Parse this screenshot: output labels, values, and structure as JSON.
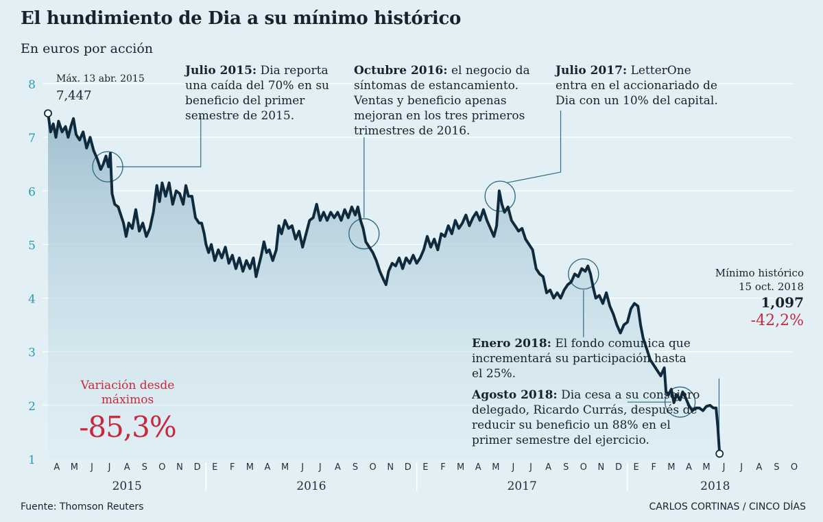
{
  "title": "El hundimiento de Dia a su mínimo histórico",
  "subtitle": "En euros por acción",
  "colors": {
    "line": "#0e2a3c",
    "accent": "#c8283c",
    "tick": "#2a9bb5",
    "background": "#e2eff5"
  },
  "annotations": {
    "max": {
      "label": "Máx. 13 abr. 2015",
      "value": "7,447"
    },
    "min": {
      "label1": "Mínimo histórico",
      "label2": "15 oct. 2018",
      "value": "1,097",
      "change": "-42,2%"
    },
    "jul2015": {
      "bold": "Julio 2015:",
      "text": " Dia reporta una caída del 70% en su beneficio del primer semestre de 2015."
    },
    "oct2016": {
      "bold": "Octubre 2016:",
      "text": " el negocio da síntomas de estancamiento. Ventas y beneficio apenas mejoran en los tres primeros trimestres de 2016."
    },
    "jul2017": {
      "bold": "Julio 2017:",
      "text": " LetterOne entra en el accionariado de Dia con un 10% del capital."
    },
    "ene2018": {
      "bold": "Enero 2018:",
      "text": " El fondo comunica que incrementará su participación hasta el 25%."
    },
    "ago2018": {
      "bold": "Agosto 2018:",
      "text": " Dia cesa a su consejero delegado, Ricardo Currás, después de reducir su beneficio un 88% en el primer semestre del ejercicio."
    }
  },
  "variation": {
    "label": "Variación desde máximos",
    "value": "-85,3%"
  },
  "source": "Fuente: Thomson Reuters",
  "credit": "CARLOS CORTINAS / CINCO DÍAS",
  "chart_data": {
    "type": "area",
    "title": "El hundimiento de Dia a su mínimo histórico",
    "ylabel": "En euros por acción",
    "ylim": [
      1,
      8
    ],
    "yticks": [
      1,
      2,
      3,
      4,
      5,
      6,
      7,
      8
    ],
    "month_labels": [
      "A",
      "M",
      "J",
      "J",
      "A",
      "S",
      "O",
      "N",
      "D",
      "E",
      "F",
      "M",
      "A",
      "M",
      "J",
      "J",
      "A",
      "S",
      "O",
      "N",
      "D",
      "E",
      "F",
      "M",
      "A",
      "M",
      "J",
      "J",
      "A",
      "S",
      "O",
      "N",
      "D",
      "E",
      "F",
      "M",
      "A",
      "M",
      "J",
      "J",
      "A",
      "S",
      "O"
    ],
    "years": [
      {
        "label": "2015",
        "from": 0,
        "to": 9
      },
      {
        "label": "2016",
        "from": 9,
        "to": 21
      },
      {
        "label": "2017",
        "from": 21,
        "to": 33
      },
      {
        "label": "2018",
        "from": 33,
        "to": 43
      }
    ],
    "series": [
      {
        "name": "Dia (euros por acción)",
        "points": [
          [
            0.0,
            7.447
          ],
          [
            0.15,
            7.1
          ],
          [
            0.3,
            7.25
          ],
          [
            0.45,
            7.0
          ],
          [
            0.6,
            7.3
          ],
          [
            0.8,
            7.1
          ],
          [
            1.0,
            7.2
          ],
          [
            1.15,
            7.0
          ],
          [
            1.3,
            7.2
          ],
          [
            1.45,
            7.35
          ],
          [
            1.6,
            7.05
          ],
          [
            1.8,
            6.95
          ],
          [
            2.0,
            7.1
          ],
          [
            2.2,
            6.8
          ],
          [
            2.4,
            7.0
          ],
          [
            2.6,
            6.75
          ],
          [
            2.8,
            6.6
          ],
          [
            3.0,
            6.4
          ],
          [
            3.15,
            6.5
          ],
          [
            3.3,
            6.65
          ],
          [
            3.45,
            6.45
          ],
          [
            3.55,
            6.7
          ],
          [
            3.65,
            5.95
          ],
          [
            3.8,
            5.75
          ],
          [
            4.0,
            5.7
          ],
          [
            4.15,
            5.55
          ],
          [
            4.3,
            5.4
          ],
          [
            4.45,
            5.15
          ],
          [
            4.6,
            5.4
          ],
          [
            4.8,
            5.3
          ],
          [
            5.0,
            5.65
          ],
          [
            5.2,
            5.25
          ],
          [
            5.4,
            5.4
          ],
          [
            5.6,
            5.15
          ],
          [
            5.8,
            5.3
          ],
          [
            6.0,
            5.6
          ],
          [
            6.2,
            6.1
          ],
          [
            6.35,
            5.8
          ],
          [
            6.5,
            6.15
          ],
          [
            6.7,
            5.9
          ],
          [
            6.9,
            6.15
          ],
          [
            7.1,
            5.75
          ],
          [
            7.3,
            6.0
          ],
          [
            7.5,
            5.95
          ],
          [
            7.7,
            5.75
          ],
          [
            7.85,
            6.1
          ],
          [
            8.0,
            5.9
          ],
          [
            8.2,
            5.9
          ],
          [
            8.4,
            5.5
          ],
          [
            8.6,
            5.4
          ],
          [
            8.75,
            5.4
          ],
          [
            8.9,
            5.2
          ],
          [
            9.0,
            5.0
          ],
          [
            9.15,
            4.85
          ],
          [
            9.3,
            5.0
          ],
          [
            9.5,
            4.7
          ],
          [
            9.7,
            4.9
          ],
          [
            9.9,
            4.75
          ],
          [
            10.1,
            4.95
          ],
          [
            10.3,
            4.65
          ],
          [
            10.5,
            4.8
          ],
          [
            10.7,
            4.55
          ],
          [
            10.9,
            4.75
          ],
          [
            11.1,
            4.5
          ],
          [
            11.3,
            4.7
          ],
          [
            11.5,
            4.55
          ],
          [
            11.7,
            4.75
          ],
          [
            11.85,
            4.4
          ],
          [
            12.0,
            4.6
          ],
          [
            12.15,
            4.8
          ],
          [
            12.3,
            5.05
          ],
          [
            12.45,
            4.85
          ],
          [
            12.6,
            4.9
          ],
          [
            12.8,
            4.7
          ],
          [
            13.0,
            4.9
          ],
          [
            13.15,
            5.35
          ],
          [
            13.3,
            5.2
          ],
          [
            13.5,
            5.45
          ],
          [
            13.7,
            5.3
          ],
          [
            13.9,
            5.35
          ],
          [
            14.1,
            5.1
          ],
          [
            14.3,
            5.25
          ],
          [
            14.5,
            4.95
          ],
          [
            14.7,
            5.2
          ],
          [
            14.9,
            5.45
          ],
          [
            15.1,
            5.5
          ],
          [
            15.3,
            5.75
          ],
          [
            15.5,
            5.45
          ],
          [
            15.7,
            5.6
          ],
          [
            15.9,
            5.45
          ],
          [
            16.1,
            5.6
          ],
          [
            16.3,
            5.5
          ],
          [
            16.5,
            5.6
          ],
          [
            16.7,
            5.45
          ],
          [
            16.9,
            5.65
          ],
          [
            17.1,
            5.5
          ],
          [
            17.3,
            5.7
          ],
          [
            17.5,
            5.55
          ],
          [
            17.65,
            5.7
          ],
          [
            17.8,
            5.45
          ],
          [
            17.95,
            5.3
          ],
          [
            18.1,
            5.05
          ],
          [
            18.3,
            4.95
          ],
          [
            18.5,
            4.85
          ],
          [
            18.7,
            4.7
          ],
          [
            18.9,
            4.5
          ],
          [
            19.1,
            4.35
          ],
          [
            19.25,
            4.25
          ],
          [
            19.4,
            4.5
          ],
          [
            19.6,
            4.65
          ],
          [
            19.8,
            4.6
          ],
          [
            20.0,
            4.75
          ],
          [
            20.2,
            4.55
          ],
          [
            20.4,
            4.75
          ],
          [
            20.6,
            4.65
          ],
          [
            20.8,
            4.8
          ],
          [
            21.0,
            4.65
          ],
          [
            21.2,
            4.75
          ],
          [
            21.4,
            4.9
          ],
          [
            21.6,
            5.15
          ],
          [
            21.8,
            4.95
          ],
          [
            22.0,
            5.1
          ],
          [
            22.2,
            4.9
          ],
          [
            22.4,
            5.2
          ],
          [
            22.6,
            5.15
          ],
          [
            22.8,
            5.35
          ],
          [
            23.0,
            5.2
          ],
          [
            23.2,
            5.45
          ],
          [
            23.4,
            5.3
          ],
          [
            23.6,
            5.4
          ],
          [
            23.8,
            5.55
          ],
          [
            24.0,
            5.35
          ],
          [
            24.2,
            5.5
          ],
          [
            24.4,
            5.6
          ],
          [
            24.6,
            5.45
          ],
          [
            24.8,
            5.65
          ],
          [
            25.0,
            5.45
          ],
          [
            25.2,
            5.3
          ],
          [
            25.4,
            5.15
          ],
          [
            25.55,
            5.35
          ],
          [
            25.7,
            6.0
          ],
          [
            25.85,
            5.75
          ],
          [
            26.0,
            5.6
          ],
          [
            26.2,
            5.7
          ],
          [
            26.4,
            5.45
          ],
          [
            26.6,
            5.35
          ],
          [
            26.8,
            5.25
          ],
          [
            27.0,
            5.3
          ],
          [
            27.2,
            5.1
          ],
          [
            27.4,
            5.0
          ],
          [
            27.6,
            4.9
          ],
          [
            27.8,
            4.55
          ],
          [
            28.0,
            4.45
          ],
          [
            28.2,
            4.4
          ],
          [
            28.4,
            4.1
          ],
          [
            28.6,
            4.15
          ],
          [
            28.8,
            4.0
          ],
          [
            29.0,
            4.1
          ],
          [
            29.2,
            4.0
          ],
          [
            29.4,
            4.15
          ],
          [
            29.6,
            4.25
          ],
          [
            29.8,
            4.3
          ],
          [
            30.0,
            4.45
          ],
          [
            30.2,
            4.4
          ],
          [
            30.4,
            4.55
          ],
          [
            30.6,
            4.5
          ],
          [
            30.75,
            4.6
          ],
          [
            30.9,
            4.45
          ],
          [
            31.05,
            4.2
          ],
          [
            31.2,
            4.0
          ],
          [
            31.4,
            4.05
          ],
          [
            31.6,
            3.9
          ],
          [
            31.8,
            4.1
          ],
          [
            32.0,
            3.85
          ],
          [
            32.2,
            3.7
          ],
          [
            32.4,
            3.5
          ],
          [
            32.6,
            3.35
          ],
          [
            32.8,
            3.5
          ],
          [
            33.0,
            3.55
          ],
          [
            33.2,
            3.8
          ],
          [
            33.4,
            3.9
          ],
          [
            33.6,
            3.85
          ],
          [
            33.75,
            3.5
          ],
          [
            33.9,
            3.25
          ],
          [
            34.1,
            3.05
          ],
          [
            34.3,
            2.85
          ],
          [
            34.5,
            2.75
          ],
          [
            34.7,
            2.65
          ],
          [
            34.9,
            2.55
          ],
          [
            35.1,
            2.7
          ],
          [
            35.2,
            2.25
          ],
          [
            35.35,
            2.2
          ],
          [
            35.5,
            2.3
          ],
          [
            35.65,
            2.05
          ],
          [
            35.8,
            2.2
          ],
          [
            36.0,
            2.1
          ],
          [
            36.15,
            2.25
          ],
          [
            36.3,
            2.15
          ],
          [
            36.5,
            2.0
          ],
          [
            36.7,
            1.9
          ],
          [
            36.9,
            1.95
          ],
          [
            37.1,
            1.95
          ],
          [
            37.3,
            1.9
          ],
          [
            37.5,
            1.98
          ],
          [
            37.7,
            2.0
          ],
          [
            37.9,
            1.95
          ],
          [
            38.05,
            1.95
          ],
          [
            38.15,
            1.6
          ],
          [
            38.25,
            1.097
          ]
        ]
      }
    ],
    "max_point": {
      "date": "13 abr. 2015",
      "value": 7.447
    },
    "min_point": {
      "date": "15 oct. 2018",
      "value": 1.097
    }
  }
}
